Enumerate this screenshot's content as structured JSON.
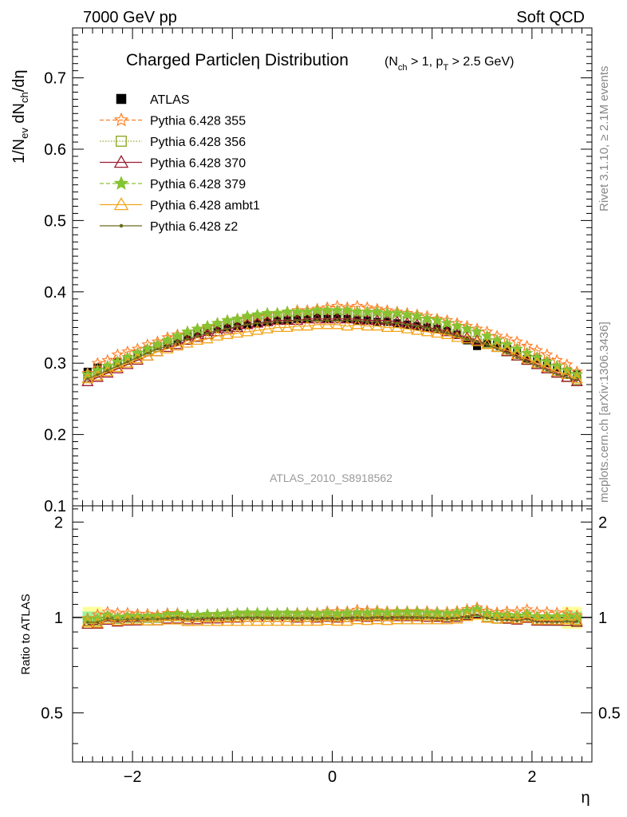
{
  "header": {
    "left": "7000 GeV pp",
    "right": "Soft QCD"
  },
  "side_labels": {
    "rivet": "Rivet 3.1.10, ≥ 2.1M events",
    "mcplots": "mcplots.cern.ch [arXiv:1306.3436]"
  },
  "chart_data": [
    {
      "type": "scatter",
      "title_main": "Charged Particleη Distribution",
      "title_cut": "(N_ch > 1, p_T > 2.5 GeV)",
      "ylabel": "1/N_ev dN_ch/dη",
      "watermark": "ATLAS_2010_S8918562",
      "xlim": [
        -2.6,
        2.6
      ],
      "ylim": [
        0.1,
        0.77
      ],
      "yticks": [
        0.1,
        0.2,
        0.3,
        0.4,
        0.5,
        0.6,
        0.7
      ],
      "ytick_labels": [
        "0.1",
        "0.2",
        "0.3",
        "0.4",
        "0.5",
        "0.6",
        "0.7"
      ],
      "legend_position": "top-left",
      "colors": {
        "atlas": "#000000",
        "p355": "#ff7f27",
        "p356": "#8fac2c",
        "p370": "#9b1b30",
        "p379": "#86c332",
        "ambt1": "#f2a51c",
        "z2": "#6b6b1e"
      },
      "x_centers": [
        -2.45,
        -2.35,
        -2.25,
        -2.15,
        -2.05,
        -1.95,
        -1.85,
        -1.75,
        -1.65,
        -1.55,
        -1.45,
        -1.35,
        -1.25,
        -1.15,
        -1.05,
        -0.95,
        -0.85,
        -0.75,
        -0.65,
        -0.55,
        -0.45,
        -0.35,
        -0.25,
        -0.15,
        -0.05,
        0.05,
        0.15,
        0.25,
        0.35,
        0.45,
        0.55,
        0.65,
        0.75,
        0.85,
        0.95,
        1.05,
        1.15,
        1.25,
        1.35,
        1.45,
        1.55,
        1.65,
        1.75,
        1.85,
        1.95,
        2.05,
        2.15,
        2.25,
        2.35,
        2.45
      ],
      "series": [
        {
          "name": "ATLAS",
          "key": "atlas",
          "marker": "square",
          "line": "none",
          "values": [
            0.288,
            0.294,
            0.292,
            0.302,
            0.306,
            0.312,
            0.318,
            0.324,
            0.326,
            0.33,
            0.338,
            0.342,
            0.344,
            0.348,
            0.35,
            0.352,
            0.354,
            0.356,
            0.358,
            0.36,
            0.36,
            0.362,
            0.362,
            0.364,
            0.362,
            0.364,
            0.362,
            0.36,
            0.36,
            0.358,
            0.358,
            0.356,
            0.354,
            0.352,
            0.35,
            0.348,
            0.346,
            0.34,
            0.332,
            0.324,
            0.328,
            0.326,
            0.32,
            0.316,
            0.306,
            0.306,
            0.3,
            0.294,
            0.288,
            0.284
          ]
        },
        {
          "name": "Pythia 6.428 355",
          "key": "p355",
          "marker": "star",
          "line": "dashed",
          "values": [
            0.286,
            0.3,
            0.304,
            0.312,
            0.316,
            0.32,
            0.326,
            0.33,
            0.336,
            0.34,
            0.344,
            0.348,
            0.35,
            0.356,
            0.36,
            0.362,
            0.364,
            0.366,
            0.368,
            0.37,
            0.372,
            0.374,
            0.374,
            0.376,
            0.378,
            0.38,
            0.378,
            0.38,
            0.378,
            0.376,
            0.374,
            0.372,
            0.37,
            0.368,
            0.366,
            0.362,
            0.36,
            0.356,
            0.352,
            0.348,
            0.344,
            0.338,
            0.334,
            0.33,
            0.324,
            0.318,
            0.312,
            0.304,
            0.298,
            0.288
          ]
        },
        {
          "name": "Pythia 6.428 356",
          "key": "p356",
          "marker": "square-open",
          "line": "dotted",
          "values": [
            0.28,
            0.286,
            0.292,
            0.298,
            0.304,
            0.31,
            0.316,
            0.322,
            0.328,
            0.332,
            0.338,
            0.342,
            0.346,
            0.35,
            0.354,
            0.358,
            0.36,
            0.362,
            0.364,
            0.366,
            0.366,
            0.366,
            0.368,
            0.368,
            0.368,
            0.368,
            0.368,
            0.366,
            0.366,
            0.366,
            0.364,
            0.362,
            0.36,
            0.358,
            0.354,
            0.35,
            0.346,
            0.342,
            0.338,
            0.332,
            0.328,
            0.322,
            0.316,
            0.31,
            0.304,
            0.298,
            0.292,
            0.286,
            0.28,
            0.276
          ]
        },
        {
          "name": "Pythia 6.428 370",
          "key": "p370",
          "marker": "triangle-open",
          "line": "solid",
          "values": [
            0.274,
            0.28,
            0.286,
            0.292,
            0.298,
            0.304,
            0.31,
            0.316,
            0.322,
            0.326,
            0.332,
            0.336,
            0.34,
            0.344,
            0.348,
            0.35,
            0.354,
            0.356,
            0.358,
            0.36,
            0.36,
            0.36,
            0.362,
            0.362,
            0.362,
            0.362,
            0.362,
            0.362,
            0.36,
            0.36,
            0.36,
            0.358,
            0.356,
            0.354,
            0.35,
            0.348,
            0.344,
            0.34,
            0.336,
            0.332,
            0.326,
            0.322,
            0.316,
            0.31,
            0.304,
            0.298,
            0.292,
            0.286,
            0.28,
            0.274
          ]
        },
        {
          "name": "Pythia 6.428 379",
          "key": "p379",
          "marker": "star",
          "line": "dashed",
          "values": [
            0.284,
            0.29,
            0.296,
            0.302,
            0.308,
            0.314,
            0.32,
            0.326,
            0.332,
            0.338,
            0.344,
            0.348,
            0.352,
            0.356,
            0.36,
            0.362,
            0.366,
            0.368,
            0.37,
            0.37,
            0.372,
            0.372,
            0.372,
            0.374,
            0.374,
            0.374,
            0.374,
            0.372,
            0.372,
            0.372,
            0.37,
            0.37,
            0.368,
            0.366,
            0.362,
            0.36,
            0.356,
            0.352,
            0.348,
            0.344,
            0.338,
            0.332,
            0.326,
            0.32,
            0.314,
            0.308,
            0.302,
            0.296,
            0.29,
            0.284
          ]
        },
        {
          "name": "Pythia 6.428 ambt1",
          "key": "ambt1",
          "marker": "triangle-open",
          "line": "solid",
          "values": [
            0.278,
            0.282,
            0.288,
            0.294,
            0.3,
            0.306,
            0.31,
            0.316,
            0.32,
            0.324,
            0.328,
            0.332,
            0.334,
            0.338,
            0.34,
            0.342,
            0.344,
            0.346,
            0.348,
            0.35,
            0.35,
            0.352,
            0.352,
            0.354,
            0.354,
            0.354,
            0.352,
            0.354,
            0.352,
            0.352,
            0.35,
            0.35,
            0.348,
            0.346,
            0.344,
            0.342,
            0.34,
            0.336,
            0.334,
            0.33,
            0.326,
            0.322,
            0.318,
            0.312,
            0.306,
            0.3,
            0.294,
            0.288,
            0.284,
            0.278
          ]
        },
        {
          "name": "Pythia 6.428 z2",
          "key": "z2",
          "marker": "dot",
          "line": "solid",
          "values": [
            0.278,
            0.284,
            0.29,
            0.296,
            0.302,
            0.308,
            0.314,
            0.32,
            0.324,
            0.33,
            0.334,
            0.338,
            0.342,
            0.346,
            0.348,
            0.352,
            0.354,
            0.356,
            0.356,
            0.358,
            0.358,
            0.36,
            0.36,
            0.36,
            0.36,
            0.36,
            0.36,
            0.36,
            0.358,
            0.358,
            0.356,
            0.356,
            0.354,
            0.352,
            0.35,
            0.346,
            0.342,
            0.338,
            0.334,
            0.33,
            0.326,
            0.32,
            0.314,
            0.308,
            0.302,
            0.296,
            0.29,
            0.284,
            0.28,
            0.276
          ]
        }
      ]
    },
    {
      "type": "scatter",
      "ylabel": "Ratio to ATLAS",
      "xlabel": "η",
      "xlim": [
        -2.6,
        2.6
      ],
      "ylim": [
        0.35,
        2.25
      ],
      "xticks": [
        -2,
        0,
        2
      ],
      "xtick_labels": [
        "−2",
        "0",
        "2"
      ],
      "yticks": [
        0.5,
        1,
        2
      ],
      "ytick_labels": [
        "0.5",
        "1",
        "2"
      ],
      "band_colors": {
        "stat": "#9cf29c",
        "total": "#ffff9b"
      },
      "band_edges": [
        -2.5,
        -2.3,
        2.3,
        2.5
      ],
      "band_half_width_edge": 0.08,
      "band_half_width_inner": 0.02
    }
  ]
}
